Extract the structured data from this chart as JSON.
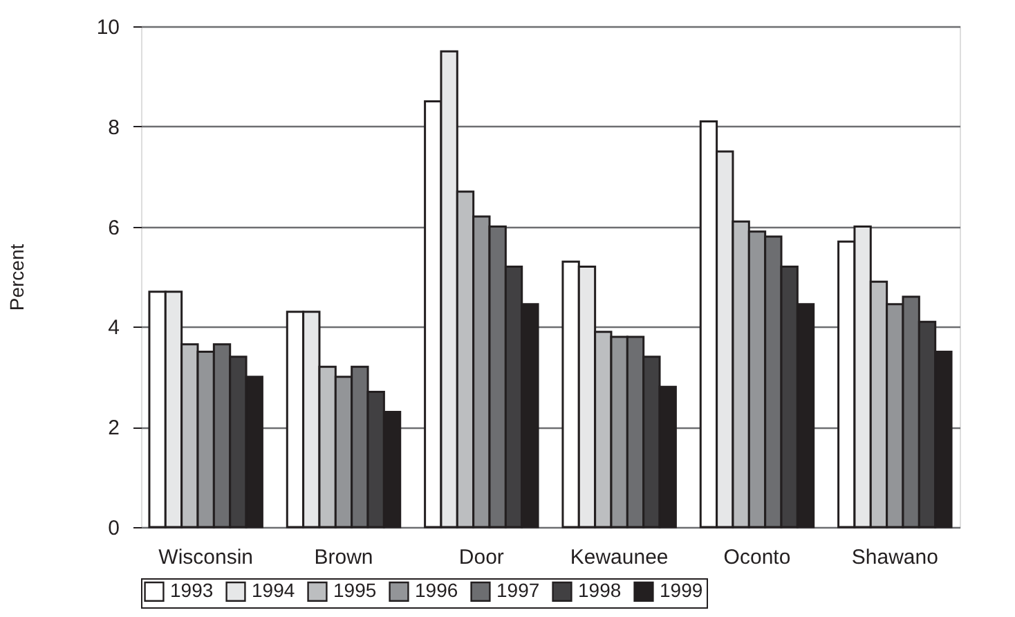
{
  "chart_data": {
    "type": "bar",
    "ylabel": "Percent",
    "categories": [
      "Wisconsin",
      "Brown",
      "Door",
      "Kewaunee",
      "Oconto",
      "Shawano"
    ],
    "series": [
      {
        "name": "1993",
        "color": "#ffffff",
        "values": [
          4.7,
          4.3,
          8.5,
          5.3,
          8.1,
          5.7
        ]
      },
      {
        "name": "1994",
        "color": "#e6e7e8",
        "values": [
          4.7,
          4.3,
          9.5,
          5.2,
          7.5,
          6.0
        ]
      },
      {
        "name": "1995",
        "color": "#bcbec0",
        "values": [
          3.65,
          3.2,
          6.7,
          3.9,
          6.1,
          4.9
        ]
      },
      {
        "name": "1996",
        "color": "#939598",
        "values": [
          3.5,
          3.0,
          6.2,
          3.8,
          5.9,
          4.45
        ]
      },
      {
        "name": "1997",
        "color": "#6d6e71",
        "values": [
          3.65,
          3.2,
          6.0,
          3.8,
          5.8,
          4.6
        ]
      },
      {
        "name": "1998",
        "color": "#414042",
        "values": [
          3.4,
          2.7,
          5.2,
          3.4,
          5.2,
          4.1
        ]
      },
      {
        "name": "1999",
        "color": "#231f20",
        "values": [
          3.0,
          2.3,
          4.45,
          2.8,
          4.45,
          3.5
        ]
      }
    ],
    "ylim": [
      0,
      10
    ],
    "yticks": [
      0,
      2,
      4,
      6,
      8,
      10
    ],
    "grid": "y",
    "legend": "bottom"
  }
}
